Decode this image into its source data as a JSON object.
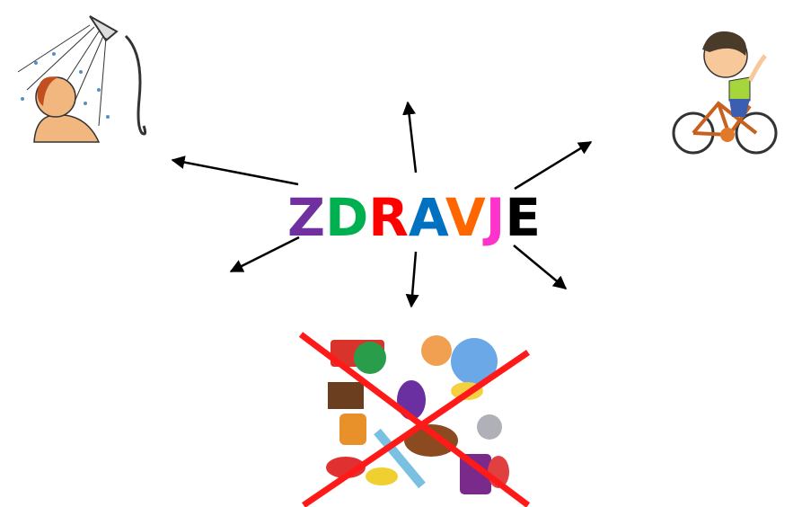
{
  "center": {
    "letters": [
      "Z",
      "D",
      "R",
      "A",
      "V",
      "J",
      "E"
    ],
    "colors": [
      "#7030a0",
      "#00b050",
      "#ff0000",
      "#0070c0",
      "#ff6600",
      "#ff33cc",
      "#000000"
    ]
  }
}
